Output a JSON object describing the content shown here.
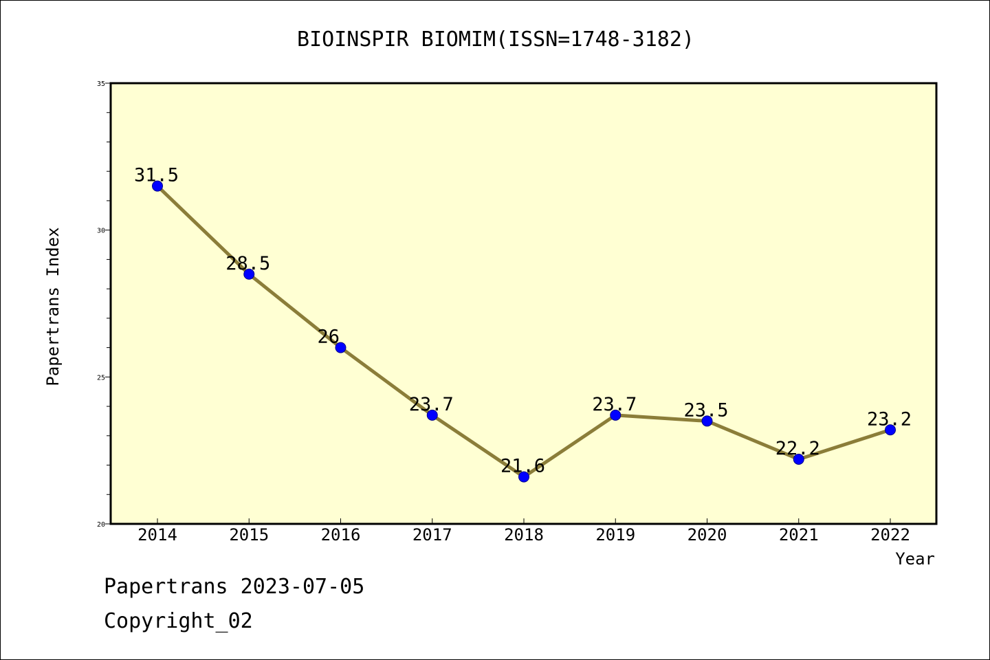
{
  "chart_data": {
    "type": "line",
    "title": "BIOINSPIR BIOMIM(ISSN=1748-3182)",
    "xlabel": "Year",
    "ylabel": "Papertrans Index",
    "categories": [
      "2014",
      "2015",
      "2016",
      "2017",
      "2018",
      "2019",
      "2020",
      "2021",
      "2022"
    ],
    "series": [
      {
        "values": [
          31.5,
          28.5,
          26,
          23.7,
          21.6,
          23.7,
          23.5,
          22.2,
          23.2
        ],
        "labels": [
          "31.5",
          "28.5",
          "26",
          "23.7",
          "21.6",
          "23.7",
          "23.5",
          "22.2",
          "23.2"
        ]
      }
    ],
    "ylim": [
      20,
      35
    ],
    "yticks": [
      "20",
      "25",
      "30",
      "35"
    ],
    "grid": false,
    "colors": {
      "plot_background": "#ffffd3",
      "line": "#8b7d39",
      "marker": "#0000ff"
    }
  },
  "footer": {
    "date_line": "Papertrans 2023-07-05",
    "copyright_line": "Copyright_02"
  }
}
